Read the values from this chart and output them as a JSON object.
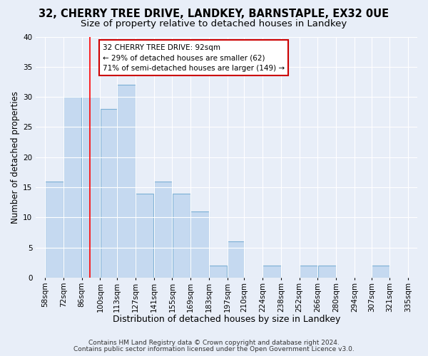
{
  "title1": "32, CHERRY TREE DRIVE, LANDKEY, BARNSTAPLE, EX32 0UE",
  "title2": "Size of property relative to detached houses in Landkey",
  "xlabel": "Distribution of detached houses by size in Landkey",
  "ylabel": "Number of detached properties",
  "bar_left_edges": [
    58,
    72,
    86,
    100,
    113,
    127,
    141,
    155,
    169,
    183,
    197,
    210,
    224,
    238,
    252,
    266,
    280,
    294,
    307,
    321
  ],
  "bar_widths": [
    14,
    14,
    14,
    13,
    14,
    14,
    14,
    14,
    14,
    14,
    13,
    14,
    14,
    14,
    14,
    14,
    14,
    13,
    14,
    14
  ],
  "bar_heights": [
    16,
    30,
    30,
    28,
    32,
    14,
    16,
    14,
    11,
    2,
    6,
    0,
    2,
    0,
    2,
    2,
    0,
    0,
    2,
    0
  ],
  "bar_color": "#c5d9f0",
  "bar_edgecolor": "#7bafd4",
  "redline_x": 92,
  "ylim": [
    0,
    40
  ],
  "yticks": [
    0,
    5,
    10,
    15,
    20,
    25,
    30,
    35,
    40
  ],
  "xtick_labels": [
    "58sqm",
    "72sqm",
    "86sqm",
    "100sqm",
    "113sqm",
    "127sqm",
    "141sqm",
    "155sqm",
    "169sqm",
    "183sqm",
    "197sqm",
    "210sqm",
    "224sqm",
    "238sqm",
    "252sqm",
    "266sqm",
    "280sqm",
    "294sqm",
    "307sqm",
    "321sqm",
    "335sqm"
  ],
  "xtick_positions": [
    58,
    72,
    86,
    100,
    113,
    127,
    141,
    155,
    169,
    183,
    197,
    210,
    224,
    238,
    252,
    266,
    280,
    294,
    307,
    321,
    335
  ],
  "annotation_title": "32 CHERRY TREE DRIVE: 92sqm",
  "annotation_line1": "← 29% of detached houses are smaller (62)",
  "annotation_line2": "71% of semi-detached houses are larger (149) →",
  "annotation_box_color": "#ffffff",
  "annotation_box_edgecolor": "#cc0000",
  "footnote1": "Contains HM Land Registry data © Crown copyright and database right 2024.",
  "footnote2": "Contains public sector information licensed under the Open Government Licence v3.0.",
  "bg_color": "#e8eef8",
  "grid_color": "#ffffff",
  "title1_fontsize": 10.5,
  "title2_fontsize": 9.5,
  "xlabel_fontsize": 9,
  "ylabel_fontsize": 8.5,
  "footnote_fontsize": 6.5,
  "tick_fontsize": 7.5,
  "annot_fontsize": 7.5
}
